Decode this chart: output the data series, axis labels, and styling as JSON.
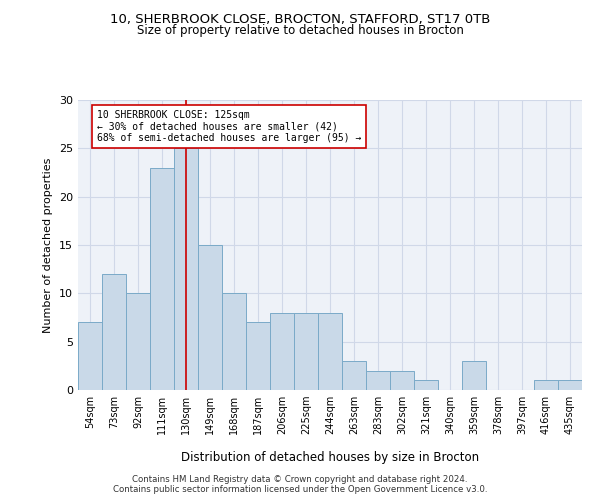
{
  "title1": "10, SHERBROOK CLOSE, BROCTON, STAFFORD, ST17 0TB",
  "title2": "Size of property relative to detached houses in Brocton",
  "xlabel": "Distribution of detached houses by size in Brocton",
  "ylabel": "Number of detached properties",
  "categories": [
    "54sqm",
    "73sqm",
    "92sqm",
    "111sqm",
    "130sqm",
    "149sqm",
    "168sqm",
    "187sqm",
    "206sqm",
    "225sqm",
    "244sqm",
    "263sqm",
    "283sqm",
    "302sqm",
    "321sqm",
    "340sqm",
    "359sqm",
    "378sqm",
    "397sqm",
    "416sqm",
    "435sqm"
  ],
  "values": [
    7,
    12,
    10,
    23,
    25,
    15,
    10,
    7,
    8,
    8,
    8,
    3,
    2,
    2,
    1,
    0,
    3,
    0,
    0,
    1,
    1
  ],
  "bar_color": "#c9d9e8",
  "bar_edge_color": "#7aaac8",
  "bar_edge_width": 0.7,
  "vline_x": 4,
  "vline_color": "#cc0000",
  "annotation_text": "10 SHERBROOK CLOSE: 125sqm\n← 30% of detached houses are smaller (42)\n68% of semi-detached houses are larger (95) →",
  "annotation_box_color": "#ffffff",
  "annotation_box_edge_color": "#cc0000",
  "ylim": [
    0,
    30
  ],
  "yticks": [
    0,
    5,
    10,
    15,
    20,
    25,
    30
  ],
  "footer_text": "Contains HM Land Registry data © Crown copyright and database right 2024.\nContains public sector information licensed under the Open Government Licence v3.0.",
  "grid_color": "#d0d8e8",
  "bg_color": "#eef2f8"
}
